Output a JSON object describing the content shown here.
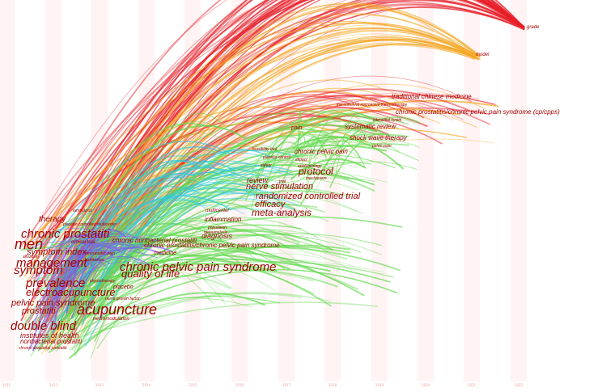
{
  "years": [
    "2011",
    "2012",
    "2013",
    "2014",
    "2015",
    "2016",
    "2017",
    "2018",
    "2019",
    "2020",
    "2021",
    "2022"
  ],
  "keywords": [
    "grade",
    "model",
    "traditional chinese medicine",
    "transurethral microwave thermotherapy",
    "chronic prostatitis/chronic pelvic pain syndrome (cp/cpps)",
    "interstitial cystiti",
    "pain",
    "systematic review",
    "shock wave therapy",
    "pelvic pain",
    "feasibility trial",
    "chronic pelvic pain",
    "placebo control",
    "impact",
    "safety",
    "epidemiology",
    "protocol",
    "mechanism",
    "review",
    "trial",
    "nerve stimulation",
    "randomized controlled trial",
    "efficacy",
    "multicenter",
    "meta-analysis",
    "inflammation",
    "population",
    "metaanalysis",
    "diagnosis",
    "tamsulosin",
    "therapy",
    "placebo controlled multicenter",
    "chronic prostatiti",
    "clinical trial",
    "men",
    "chronic nonbacterial prostatiti",
    "chronic prostatitis/chronic pelvic pain syndrome",
    "symptom index",
    "neuropathic pain",
    "alfuzosin",
    "medicine",
    "management",
    "dysfunction",
    "chronic pelvic pain syndrome",
    "symptom",
    "physiotherapy",
    "quality of life",
    "prevalence",
    "placebo",
    "electroacupuncture",
    "nerve growth factor",
    "pelvic pain syndrome",
    "acupuncture",
    "prostatiti",
    "neuromodulation",
    "double blind",
    "institutes of health",
    "nonbacterial prostatiti",
    "chronic abacterial prostatiti"
  ],
  "colors": {
    "red": "#e8202a",
    "orange": "#f5a623",
    "green": "#5fd84a",
    "cyan": "#28c8e0",
    "purple": "#7a5cf0",
    "label": "#a40000"
  }
}
